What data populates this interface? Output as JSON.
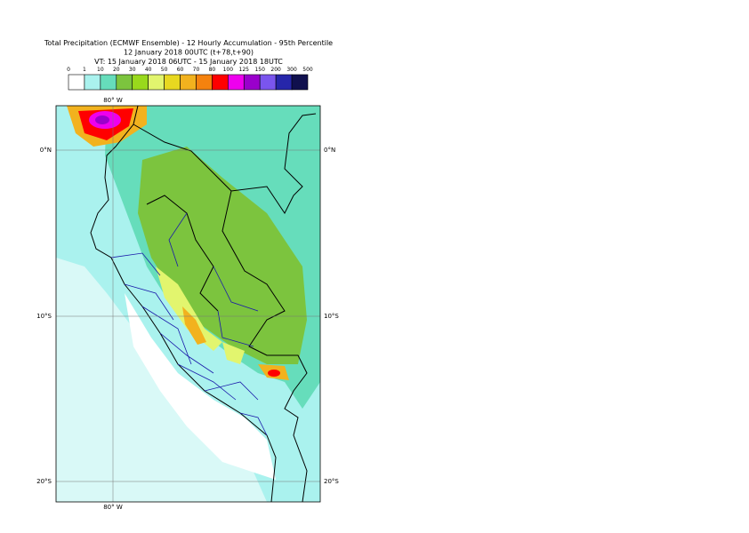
{
  "header": {
    "title_lines": [
      "Total Precipitation (ECMWF Ensemble) - 12 Hourly Accumulation - 95th Percentile",
      "12 January 2018 00UTC (t+78,t+90)",
      "VT: 15 January 2018 06UTC - 15 January 2018 18UTC"
    ]
  },
  "legend": {
    "labels": [
      "0",
      "1",
      "10",
      "20",
      "30",
      "40",
      "50",
      "60",
      "70",
      "80",
      "100",
      "125",
      "150",
      "200",
      "300",
      "500"
    ],
    "colors": [
      "#ffffff",
      "#aaf2ee",
      "#66ddbb",
      "#7cc43e",
      "#99d91c",
      "#e2f56e",
      "#e8d820",
      "#f2b21e",
      "#f5820e",
      "#ff0000",
      "#ee00ee",
      "#9a00cc",
      "#7a55ee",
      "#2626aa",
      "#10104e"
    ]
  },
  "map": {
    "lon_label_top": "80° W",
    "lon_label_bottom": "80° W",
    "lat_labels": [
      "0°N",
      "10°S",
      "20°S"
    ]
  }
}
